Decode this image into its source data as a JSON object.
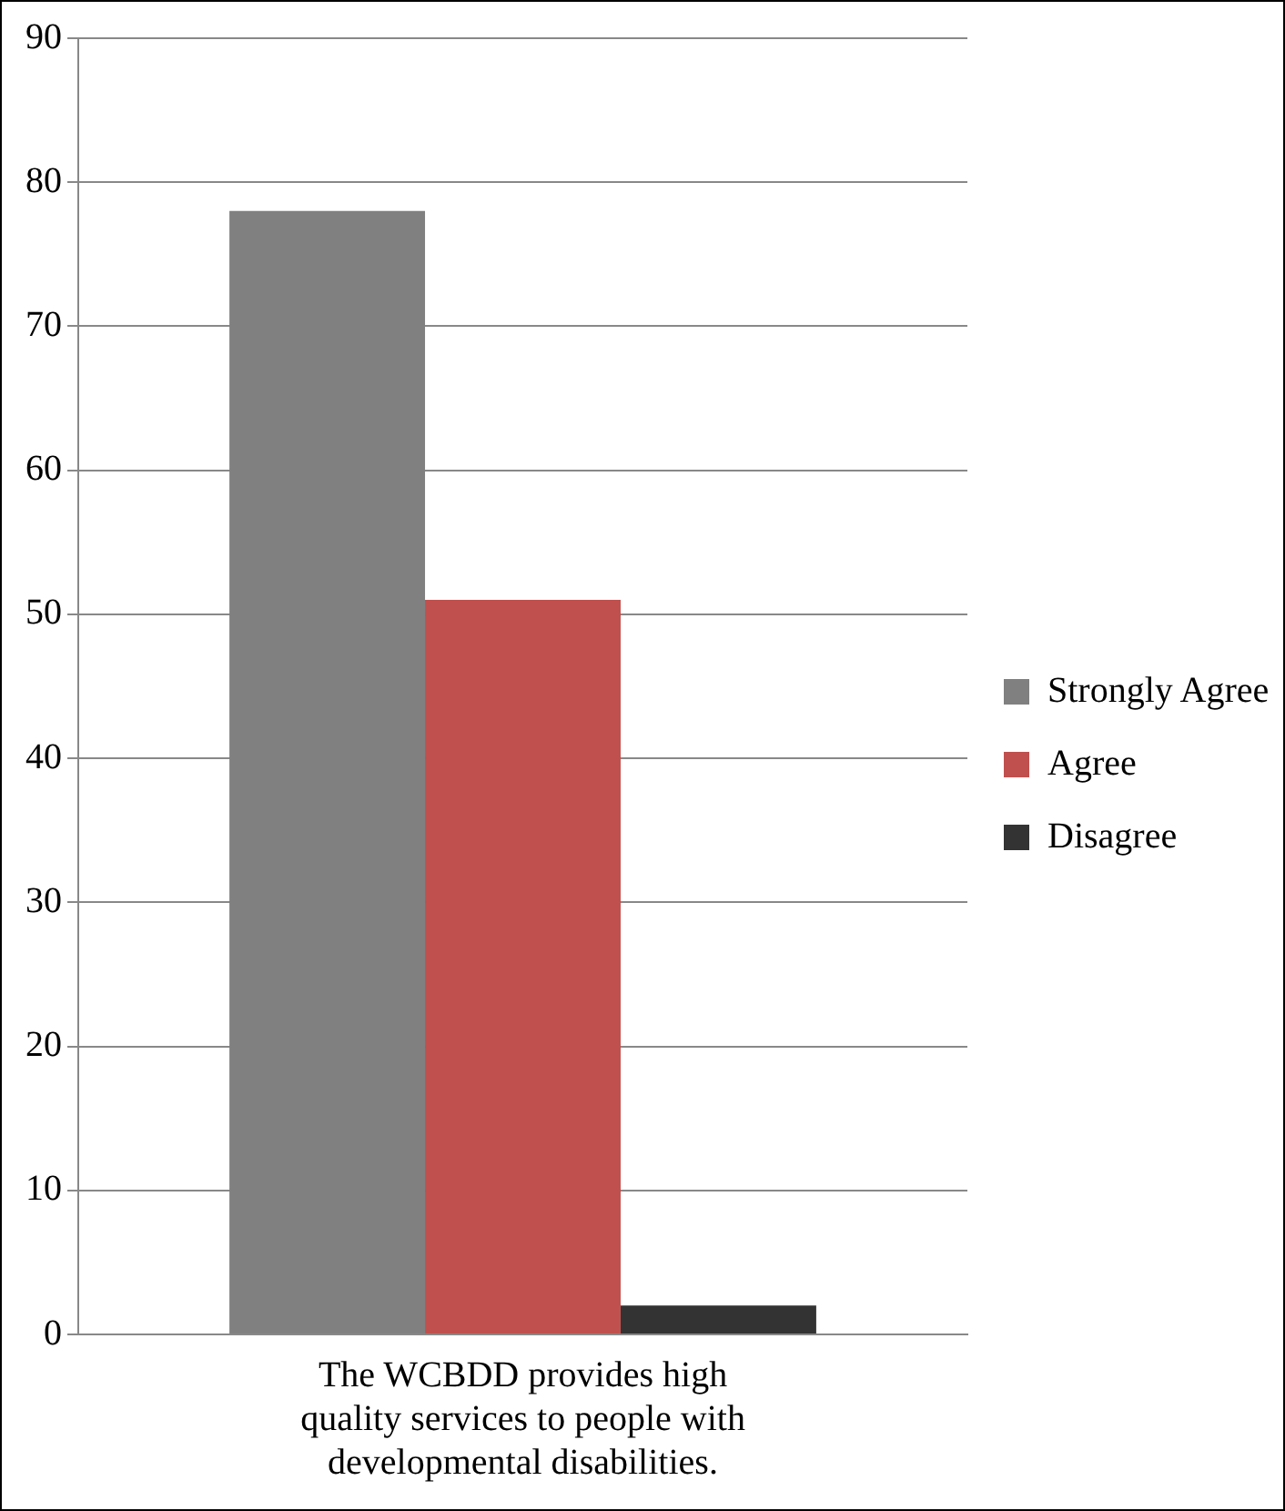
{
  "chart_data": {
    "type": "bar",
    "categories": [
      "The WCBDD provides high quality services to people with developmental disabilities."
    ],
    "series": [
      {
        "name": "Strongly Agree",
        "color": "#808080",
        "values": [
          78
        ]
      },
      {
        "name": "Agree",
        "color": "#c0504d",
        "values": [
          51
        ]
      },
      {
        "name": "Disagree",
        "color": "#333333",
        "values": [
          2
        ]
      }
    ],
    "ylim": [
      0,
      90
    ],
    "yticks": [
      0,
      10,
      20,
      30,
      40,
      50,
      60,
      70,
      80,
      90
    ],
    "grid": "y",
    "legend": "right"
  }
}
